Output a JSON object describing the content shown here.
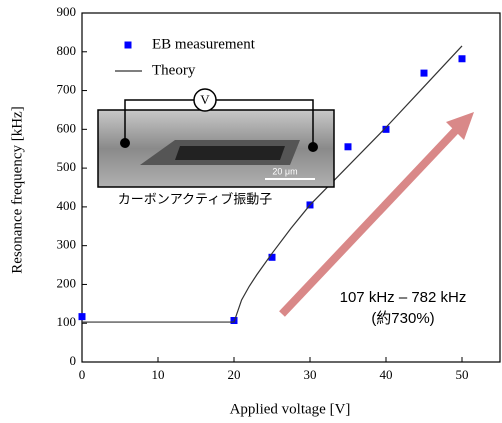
{
  "chart_data": {
    "type": "scatter",
    "x_label": "Applied voltage [V]",
    "y_label": "Resonance frequency [kHz]",
    "xlim": [
      0,
      55
    ],
    "xticks": [
      0,
      10,
      20,
      30,
      40,
      50
    ],
    "ylim": [
      0,
      900
    ],
    "yticks": [
      0,
      100,
      200,
      300,
      400,
      500,
      600,
      700,
      800,
      900
    ],
    "series": [
      {
        "name": "EB measurement",
        "mode": "markers",
        "color": "#0000ff",
        "x": [
          0,
          20,
          25,
          30,
          35,
          40,
          45,
          50
        ],
        "values": [
          117,
          107,
          270,
          405,
          555,
          600,
          745,
          782
        ]
      },
      {
        "name": "Theory",
        "mode": "line",
        "color": "#333333",
        "x": [
          0,
          20,
          21,
          22,
          23,
          25,
          27.5,
          30,
          35,
          40,
          45,
          50
        ],
        "values": [
          103,
          103,
          160,
          195,
          225,
          280,
          345,
          405,
          505,
          605,
          710,
          815
        ]
      }
    ],
    "annotations": {
      "inset_label": "カーボンアクティブ振動子",
      "meter": "V",
      "scale_bar": "20 μm",
      "range": "107 kHz – 782 kHz",
      "increase": "(約730%)"
    }
  }
}
